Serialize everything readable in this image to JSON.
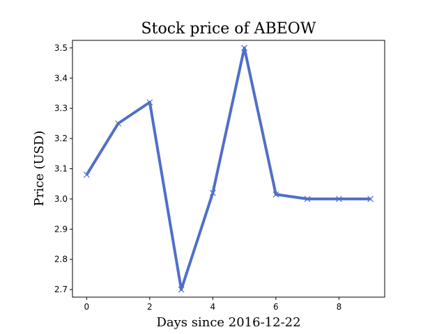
{
  "chart_data": {
    "type": "line",
    "title": "Stock price of ABEOW",
    "xlabel": "Days since 2016-12-22",
    "ylabel": "Price (USD)",
    "x": [
      0,
      1,
      2,
      3,
      4,
      5,
      6,
      7,
      8,
      9
    ],
    "series": [
      {
        "values": [
          3.08,
          3.25,
          3.32,
          2.7,
          3.02,
          3.5,
          3.015,
          3.0,
          3.0,
          3.0
        ],
        "color": "#4f6fc8",
        "marker": "x"
      }
    ],
    "xlim": [
      -0.45,
      9.45
    ],
    "ylim": [
      2.675,
      3.525
    ],
    "xticks": [
      "0",
      "2",
      "4",
      "6",
      "8"
    ],
    "yticks": [
      "2.7",
      "2.8",
      "2.9",
      "3.0",
      "3.1",
      "3.2",
      "3.3",
      "3.4",
      "3.5"
    ],
    "grid": false,
    "legend": "none"
  }
}
